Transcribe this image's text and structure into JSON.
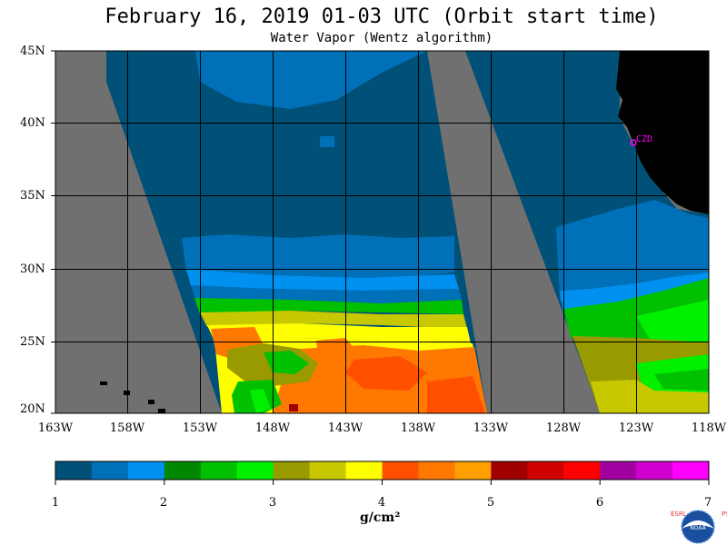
{
  "title": "February 16, 2019  01-03 UTC  (Orbit start time)",
  "subtitle": "Water Vapor (Wentz algorithm)",
  "map": {
    "lat_labels": [
      "45N",
      "40N",
      "35N",
      "30N",
      "25N",
      "20N"
    ],
    "lon_labels": [
      "163W",
      "158W",
      "153W",
      "148W",
      "143W",
      "138W",
      "133W",
      "128W",
      "123W",
      "118W"
    ],
    "station_label": "CZD",
    "colors": {
      "no_data": "#707070",
      "land": "#000000",
      "grid": "#000000",
      "station": "#ff00ff"
    }
  },
  "colorbar": {
    "unit": "g/cm²",
    "tick_labels": [
      "1",
      "2",
      "3",
      "4",
      "5",
      "6",
      "7"
    ],
    "colors": [
      "#005078",
      "#0070b8",
      "#0090f0",
      "#008800",
      "#00c000",
      "#00f000",
      "#999900",
      "#c8c800",
      "#ffff00",
      "#ff5000",
      "#ff7800",
      "#ffa000",
      "#a00000",
      "#d00000",
      "#ff0000",
      "#a000a0",
      "#d000d0",
      "#ff00ff"
    ]
  },
  "logo": {
    "left_text": "ESRL",
    "right_text": "PSD",
    "center_text": "NOAA"
  }
}
